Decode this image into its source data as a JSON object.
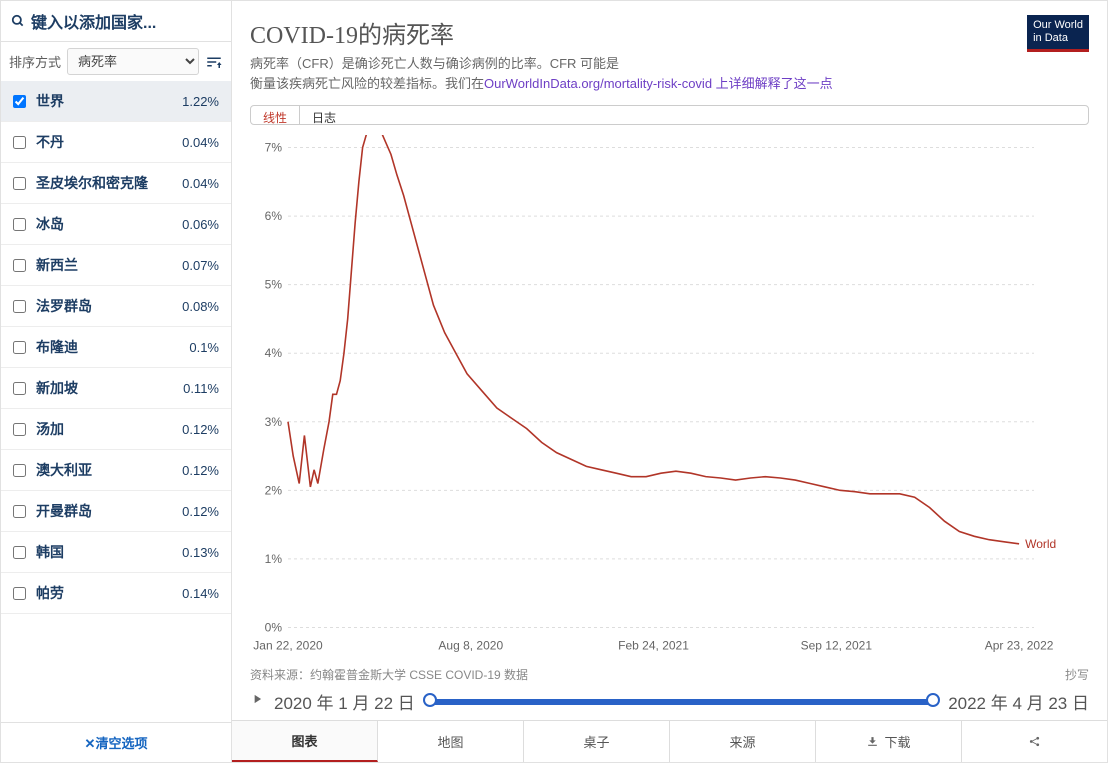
{
  "sidebar": {
    "search_placeholder": "键入以添加国家...",
    "sort_label": "排序方式",
    "sort_value": "病死率",
    "clear_label": "✕清空选项",
    "countries": [
      {
        "name": "世界",
        "value": "1.22%",
        "selected": true
      },
      {
        "name": "不丹",
        "value": "0.04%",
        "selected": false
      },
      {
        "name": "圣皮埃尔和密克隆",
        "value": "0.04%",
        "selected": false
      },
      {
        "name": "冰岛",
        "value": "0.06%",
        "selected": false
      },
      {
        "name": "新西兰",
        "value": "0.07%",
        "selected": false
      },
      {
        "name": "法罗群岛",
        "value": "0.08%",
        "selected": false
      },
      {
        "name": "布隆迪",
        "value": "0.1%",
        "selected": false
      },
      {
        "name": "新加坡",
        "value": "0.11%",
        "selected": false
      },
      {
        "name": "汤加",
        "value": "0.12%",
        "selected": false
      },
      {
        "name": "澳大利亚",
        "value": "0.12%",
        "selected": false
      },
      {
        "name": "开曼群岛",
        "value": "0.12%",
        "selected": false
      },
      {
        "name": "韩国",
        "value": "0.13%",
        "selected": false
      },
      {
        "name": "帕劳",
        "value": "0.14%",
        "selected": false
      }
    ]
  },
  "header": {
    "title": "COVID-19的病死率",
    "subtitle1": "病死率（CFR）是确诊死亡人数与确诊病例的比率。CFR 可能是",
    "subtitle2_prefix": "衡量该疾病死亡风险的较差指标。我们在",
    "subtitle2_link": "OurWorldInData.org/mortality-risk-covid 上详细解释了这一点",
    "logo_line1": "Our World",
    "logo_line2": "in Data"
  },
  "scale": {
    "linear": "线性",
    "log": "日志"
  },
  "chart": {
    "type": "line",
    "series_label": "World",
    "series_color": "#b13528",
    "background_color": "#ffffff",
    "grid_color": "#dddddd",
    "axis_color": "#888888",
    "y_ticks": [
      0,
      1,
      2,
      3,
      4,
      5,
      6,
      7
    ],
    "y_tick_labels": [
      "0%",
      "1%",
      "2%",
      "3%",
      "4%",
      "5%",
      "6%",
      "7%"
    ],
    "x_tick_labels": [
      "Jan 22, 2020",
      "Aug 8, 2020",
      "Feb 24, 2021",
      "Sep 12, 2021",
      "Apr 23, 2022"
    ],
    "x_tick_positions": [
      0,
      0.245,
      0.49,
      0.735,
      0.98
    ],
    "line_width": 1.6,
    "data": [
      [
        0.0,
        3.0
      ],
      [
        0.007,
        2.5
      ],
      [
        0.015,
        2.1
      ],
      [
        0.022,
        2.8
      ],
      [
        0.03,
        2.05
      ],
      [
        0.035,
        2.3
      ],
      [
        0.04,
        2.1
      ],
      [
        0.048,
        2.6
      ],
      [
        0.055,
        3.0
      ],
      [
        0.06,
        3.4
      ],
      [
        0.065,
        3.4
      ],
      [
        0.07,
        3.6
      ],
      [
        0.075,
        4.0
      ],
      [
        0.08,
        4.5
      ],
      [
        0.085,
        5.2
      ],
      [
        0.09,
        5.9
      ],
      [
        0.095,
        6.5
      ],
      [
        0.1,
        7.0
      ],
      [
        0.108,
        7.3
      ],
      [
        0.115,
        7.35
      ],
      [
        0.122,
        7.3
      ],
      [
        0.13,
        7.1
      ],
      [
        0.138,
        6.9
      ],
      [
        0.146,
        6.6
      ],
      [
        0.155,
        6.3
      ],
      [
        0.165,
        5.9
      ],
      [
        0.175,
        5.5
      ],
      [
        0.185,
        5.1
      ],
      [
        0.195,
        4.7
      ],
      [
        0.21,
        4.3
      ],
      [
        0.225,
        4.0
      ],
      [
        0.24,
        3.7
      ],
      [
        0.26,
        3.45
      ],
      [
        0.28,
        3.2
      ],
      [
        0.3,
        3.05
      ],
      [
        0.32,
        2.9
      ],
      [
        0.34,
        2.7
      ],
      [
        0.36,
        2.55
      ],
      [
        0.38,
        2.45
      ],
      [
        0.4,
        2.35
      ],
      [
        0.42,
        2.3
      ],
      [
        0.44,
        2.25
      ],
      [
        0.46,
        2.2
      ],
      [
        0.48,
        2.2
      ],
      [
        0.5,
        2.25
      ],
      [
        0.52,
        2.28
      ],
      [
        0.54,
        2.25
      ],
      [
        0.56,
        2.2
      ],
      [
        0.58,
        2.18
      ],
      [
        0.6,
        2.15
      ],
      [
        0.62,
        2.18
      ],
      [
        0.64,
        2.2
      ],
      [
        0.66,
        2.18
      ],
      [
        0.68,
        2.15
      ],
      [
        0.7,
        2.1
      ],
      [
        0.72,
        2.05
      ],
      [
        0.74,
        2.0
      ],
      [
        0.76,
        1.98
      ],
      [
        0.78,
        1.95
      ],
      [
        0.8,
        1.95
      ],
      [
        0.82,
        1.95
      ],
      [
        0.84,
        1.9
      ],
      [
        0.86,
        1.75
      ],
      [
        0.88,
        1.55
      ],
      [
        0.9,
        1.4
      ],
      [
        0.92,
        1.33
      ],
      [
        0.94,
        1.28
      ],
      [
        0.96,
        1.25
      ],
      [
        0.98,
        1.22
      ]
    ]
  },
  "footer": {
    "source_label": "资料来源：约翰霍普金斯大学 CSSE COVID-19 数据",
    "copy_label": "抄写",
    "start_date": "2020 年 1 月 22 日",
    "end_date": "2022 年 4 月 23 日"
  },
  "tabs": {
    "chart": "图表",
    "map": "地图",
    "table": "桌子",
    "source": "来源",
    "download": "下载"
  }
}
